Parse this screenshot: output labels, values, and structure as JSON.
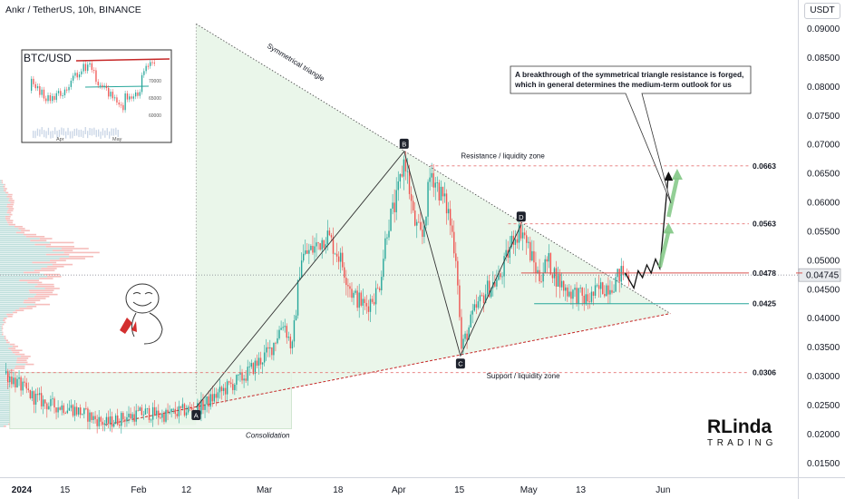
{
  "header": {
    "title": "Ankr / TetherUS, 10h, BINANCE",
    "currency": "USDT"
  },
  "colors": {
    "up": "#26a69a",
    "down": "#ef5350",
    "triangle_fill": "#e6f4e6",
    "support_line": "#c62828",
    "resistance_line": "#e57373",
    "arrow_green": "#81c784"
  },
  "chart_data": {
    "type": "candlestick",
    "symbol": "Ankr / TetherUS",
    "interval": "10h",
    "exchange": "BINANCE",
    "y_ticks": [
      "0.09000",
      "0.08500",
      "0.08000",
      "0.07500",
      "0.07000",
      "0.06500",
      "0.06000",
      "0.05500",
      "0.05000",
      "0.04500",
      "0.04000",
      "0.03500",
      "0.03000",
      "0.02500",
      "0.02000",
      "0.01500"
    ],
    "ylim": [
      0.0115,
      0.0935
    ],
    "x_ticks": [
      {
        "label": "2024",
        "date": "2024-01-01"
      },
      {
        "label": "15",
        "date": "2024-01-15"
      },
      {
        "label": "Feb",
        "date": "2024-02-01"
      },
      {
        "label": "12",
        "date": "2024-02-12"
      },
      {
        "label": "Mar",
        "date": "2024-03-01"
      },
      {
        "label": "18",
        "date": "2024-03-18"
      },
      {
        "label": "Apr",
        "date": "2024-04-01"
      },
      {
        "label": "15",
        "date": "2024-04-15"
      },
      {
        "label": "May",
        "date": "2024-05-01"
      },
      {
        "label": "13",
        "date": "2024-05-13"
      },
      {
        "label": "Jun",
        "date": "2024-06-01"
      }
    ],
    "xlim": [
      "2023-12-31",
      "2024-06-13"
    ],
    "last_price": {
      "value": 0.04745,
      "label": "0.04745"
    },
    "price_path": [
      [
        "2023-12-31",
        0.0305
      ],
      [
        "2024-01-03",
        0.0285
      ],
      [
        "2024-01-06",
        0.0265
      ],
      [
        "2024-01-10",
        0.025
      ],
      [
        "2024-01-15",
        0.0245
      ],
      [
        "2024-01-20",
        0.0228
      ],
      [
        "2024-01-23",
        0.0218
      ],
      [
        "2024-01-27",
        0.0228
      ],
      [
        "2024-02-01",
        0.0237
      ],
      [
        "2024-02-05",
        0.0232
      ],
      [
        "2024-02-10",
        0.024
      ],
      [
        "2024-02-14",
        0.0247
      ],
      [
        "2024-02-19",
        0.0275
      ],
      [
        "2024-02-24",
        0.03
      ],
      [
        "2024-03-01",
        0.0345
      ],
      [
        "2024-03-04",
        0.0395
      ],
      [
        "2024-03-06",
        0.0345
      ],
      [
        "2024-03-08",
        0.0505
      ],
      [
        "2024-03-11",
        0.052
      ],
      [
        "2024-03-14",
        0.0545
      ],
      [
        "2024-03-17",
        0.0505
      ],
      [
        "2024-03-20",
        0.044
      ],
      [
        "2024-03-23",
        0.042
      ],
      [
        "2024-03-26",
        0.045
      ],
      [
        "2024-03-28",
        0.056
      ],
      [
        "2024-03-30",
        0.06
      ],
      [
        "2024-04-01",
        0.068
      ],
      [
        "2024-04-03",
        0.057
      ],
      [
        "2024-04-05",
        0.0535
      ],
      [
        "2024-04-07",
        0.0655
      ],
      [
        "2024-04-09",
        0.062
      ],
      [
        "2024-04-11",
        0.0585
      ],
      [
        "2024-04-13",
        0.05
      ],
      [
        "2024-04-14",
        0.0345
      ],
      [
        "2024-04-17",
        0.041
      ],
      [
        "2024-04-20",
        0.045
      ],
      [
        "2024-04-23",
        0.047
      ],
      [
        "2024-04-26",
        0.054
      ],
      [
        "2024-04-28",
        0.0555
      ],
      [
        "2024-04-30",
        0.051
      ],
      [
        "2024-05-02",
        0.047
      ],
      [
        "2024-05-04",
        0.05
      ],
      [
        "2024-05-06",
        0.047
      ],
      [
        "2024-05-08",
        0.045
      ],
      [
        "2024-05-11",
        0.044
      ],
      [
        "2024-05-13",
        0.043
      ],
      [
        "2024-05-16",
        0.045
      ],
      [
        "2024-05-19",
        0.046
      ],
      [
        "2024-05-21",
        0.0478
      ],
      [
        "2024-05-23",
        0.0474
      ]
    ],
    "pattern_points": [
      {
        "label": "A",
        "date": "2024-02-13",
        "price": 0.0246,
        "position": "below"
      },
      {
        "label": "B",
        "date": "2024-04-01",
        "price": 0.0688,
        "position": "above"
      },
      {
        "label": "C",
        "date": "2024-04-14",
        "price": 0.0335,
        "position": "below"
      },
      {
        "label": "D",
        "date": "2024-04-28",
        "price": 0.0562,
        "position": "above"
      }
    ],
    "triangle": {
      "label": "Symmetrical triangle",
      "apex": [
        "2024-06-01",
        0.0408
      ],
      "upper_start": [
        "2024-02-13",
        0.0908
      ],
      "lower_start": [
        "2024-01-23",
        0.0216
      ]
    },
    "levels": [
      {
        "value": 0.0663,
        "label": "0.0663",
        "style": "dashed",
        "from": "2024-04-07"
      },
      {
        "value": 0.0563,
        "label": "0.0563",
        "style": "dashed",
        "from": "2024-04-25"
      },
      {
        "value": 0.0478,
        "label": "0.0478",
        "style": "solid",
        "from": "2024-04-28"
      },
      {
        "value": 0.0425,
        "label": "0.0425",
        "style": "solid",
        "from": "2024-05-01"
      },
      {
        "value": 0.0306,
        "label": "0.0306",
        "style": "dashed",
        "from": "2024-01-01"
      }
    ],
    "zones": [
      {
        "label": "Resistance / liquidity zone",
        "date": "2024-04-12",
        "price": 0.0676
      },
      {
        "label": "Support / liquidity zone",
        "date": "2024-04-20",
        "price": 0.0296
      }
    ],
    "consolidation": {
      "label": "Consolidation",
      "from": "2024-01-01",
      "to": "2024-03-06",
      "top": 0.0306,
      "bottom": 0.0209
    },
    "annotation": {
      "text_line1": "A breakthrough of the symmetrical triangle resistance is forged,",
      "text_line2": "which in general determines the medium-term outlook for us"
    },
    "projection_path": [
      [
        "2024-05-22",
        0.0478
      ],
      [
        "2024-05-24",
        0.0452
      ],
      [
        "2024-05-25",
        0.0482
      ],
      [
        "2024-05-26",
        0.047
      ],
      [
        "2024-05-27",
        0.0492
      ],
      [
        "2024-05-28",
        0.0478
      ],
      [
        "2024-05-29",
        0.0502
      ],
      [
        "2024-05-30",
        0.0486
      ],
      [
        "2024-06-01",
        0.065
      ]
    ],
    "green_arrows": [
      {
        "from": [
          "2024-05-30",
          0.0488
        ],
        "to": [
          "2024-06-01",
          0.0565
        ]
      },
      {
        "from": [
          "2024-06-01",
          0.0575
        ],
        "to": [
          "2024-06-03",
          0.0658
        ]
      }
    ],
    "inset": {
      "title": "BTC/USD",
      "x_ticks": [
        "Apr",
        "May"
      ],
      "y_ticks": [
        "70000",
        "65000",
        "60000"
      ]
    }
  },
  "watermark": {
    "line1": "RLinda",
    "line2": "TRADING"
  }
}
